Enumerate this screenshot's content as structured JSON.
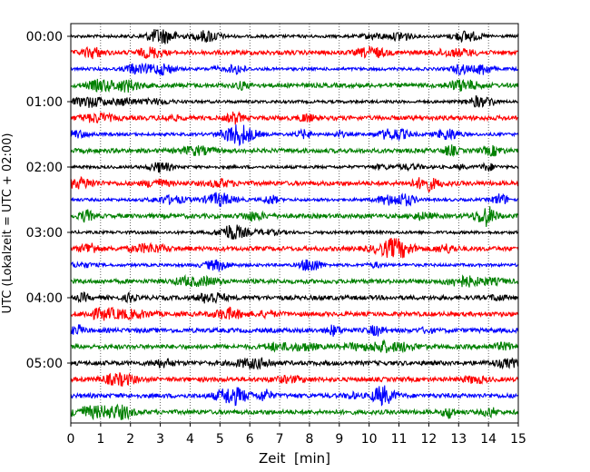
{
  "chart_data": {
    "type": "line",
    "title": "",
    "xlabel": "Zeit  [min]",
    "ylabel": "UTC (Lokalzeit = UTC + 02:00)",
    "xlim": [
      0,
      15
    ],
    "x_ticks": [
      "0",
      "1",
      "2",
      "3",
      "4",
      "5",
      "6",
      "7",
      "8",
      "9",
      "10",
      "11",
      "12",
      "13",
      "14",
      "15"
    ],
    "y_ticks": [
      "00:00",
      "01:00",
      "02:00",
      "03:00",
      "04:00",
      "05:00"
    ],
    "grid": "vertical dotted at each minute",
    "trace_interval_min": 15,
    "trace_colors": [
      "#000000",
      "#ff0000",
      "#0000ff",
      "#008000"
    ],
    "series": [
      {
        "start": "00:00",
        "color": "#000000"
      },
      {
        "start": "00:15",
        "color": "#ff0000"
      },
      {
        "start": "00:30",
        "color": "#0000ff"
      },
      {
        "start": "00:45",
        "color": "#008000"
      },
      {
        "start": "01:00",
        "color": "#000000"
      },
      {
        "start": "01:15",
        "color": "#ff0000"
      },
      {
        "start": "01:30",
        "color": "#0000ff"
      },
      {
        "start": "01:45",
        "color": "#008000"
      },
      {
        "start": "02:00",
        "color": "#000000"
      },
      {
        "start": "02:15",
        "color": "#ff0000"
      },
      {
        "start": "02:30",
        "color": "#0000ff"
      },
      {
        "start": "02:45",
        "color": "#008000"
      },
      {
        "start": "03:00",
        "color": "#000000"
      },
      {
        "start": "03:15",
        "color": "#ff0000"
      },
      {
        "start": "03:30",
        "color": "#0000ff"
      },
      {
        "start": "03:45",
        "color": "#008000"
      },
      {
        "start": "04:00",
        "color": "#000000"
      },
      {
        "start": "04:15",
        "color": "#ff0000"
      },
      {
        "start": "04:30",
        "color": "#0000ff"
      },
      {
        "start": "04:45",
        "color": "#008000"
      },
      {
        "start": "05:00",
        "color": "#000000"
      },
      {
        "start": "05:15",
        "color": "#ff0000"
      },
      {
        "start": "05:30",
        "color": "#0000ff"
      },
      {
        "start": "05:45",
        "color": "#008000"
      }
    ]
  }
}
